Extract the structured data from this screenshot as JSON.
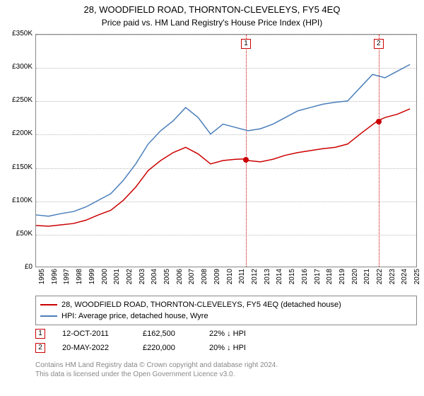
{
  "title": "28, WOODFIELD ROAD, THORNTON-CLEVELEYS, FY5 4EQ",
  "subtitle": "Price paid vs. HM Land Registry's House Price Index (HPI)",
  "chart": {
    "type": "line",
    "xrange": [
      1995,
      2025.5
    ],
    "yrange": [
      0,
      350000
    ],
    "ytick_step": 50000,
    "ytick_labels": [
      "£0",
      "£50K",
      "£100K",
      "£150K",
      "£200K",
      "£250K",
      "£300K",
      "£350K"
    ],
    "xtick_step": 1,
    "xticks": [
      1995,
      1996,
      1997,
      1998,
      1999,
      2000,
      2001,
      2002,
      2003,
      2004,
      2005,
      2006,
      2007,
      2008,
      2009,
      2010,
      2011,
      2012,
      2013,
      2014,
      2015,
      2016,
      2017,
      2018,
      2019,
      2020,
      2021,
      2022,
      2023,
      2024,
      2025
    ],
    "grid_color": "#bbbbbb",
    "border_color": "#888888",
    "background_color": "#ffffff",
    "series": [
      {
        "name": "property",
        "label": "28, WOODFIELD ROAD, THORNTON-CLEVELEYS, FY5 4EQ (detached house)",
        "color": "#cc0000",
        "line_width": 1.5,
        "data": [
          [
            1995,
            62000
          ],
          [
            1996,
            61000
          ],
          [
            1997,
            63000
          ],
          [
            1998,
            65000
          ],
          [
            1999,
            70000
          ],
          [
            2000,
            78000
          ],
          [
            2001,
            85000
          ],
          [
            2002,
            100000
          ],
          [
            2003,
            120000
          ],
          [
            2004,
            145000
          ],
          [
            2005,
            160000
          ],
          [
            2006,
            172000
          ],
          [
            2007,
            180000
          ],
          [
            2008,
            170000
          ],
          [
            2009,
            155000
          ],
          [
            2010,
            160000
          ],
          [
            2011,
            162000
          ],
          [
            2011.8,
            162500
          ],
          [
            2012,
            160000
          ],
          [
            2013,
            158000
          ],
          [
            2014,
            162000
          ],
          [
            2015,
            168000
          ],
          [
            2016,
            172000
          ],
          [
            2017,
            175000
          ],
          [
            2018,
            178000
          ],
          [
            2019,
            180000
          ],
          [
            2020,
            185000
          ],
          [
            2021,
            200000
          ],
          [
            2022.4,
            220000
          ],
          [
            2023,
            225000
          ],
          [
            2024,
            230000
          ],
          [
            2025,
            238000
          ]
        ]
      },
      {
        "name": "hpi",
        "label": "HPI: Average price, detached house, Wyre",
        "color": "#4a7ebb",
        "line_width": 1.5,
        "data": [
          [
            1995,
            78000
          ],
          [
            1996,
            76000
          ],
          [
            1997,
            80000
          ],
          [
            1998,
            83000
          ],
          [
            1999,
            90000
          ],
          [
            2000,
            100000
          ],
          [
            2001,
            110000
          ],
          [
            2002,
            130000
          ],
          [
            2003,
            155000
          ],
          [
            2004,
            185000
          ],
          [
            2005,
            205000
          ],
          [
            2006,
            220000
          ],
          [
            2007,
            240000
          ],
          [
            2008,
            225000
          ],
          [
            2009,
            200000
          ],
          [
            2010,
            215000
          ],
          [
            2011,
            210000
          ],
          [
            2012,
            205000
          ],
          [
            2013,
            208000
          ],
          [
            2014,
            215000
          ],
          [
            2015,
            225000
          ],
          [
            2016,
            235000
          ],
          [
            2017,
            240000
          ],
          [
            2018,
            245000
          ],
          [
            2019,
            248000
          ],
          [
            2020,
            250000
          ],
          [
            2021,
            270000
          ],
          [
            2022,
            290000
          ],
          [
            2023,
            285000
          ],
          [
            2024,
            295000
          ],
          [
            2025,
            305000
          ]
        ]
      }
    ],
    "vlines": [
      {
        "x": 2011.78,
        "color": "#cc0000",
        "label": "1"
      },
      {
        "x": 2022.38,
        "color": "#cc0000",
        "label": "2"
      }
    ],
    "price_points": [
      {
        "x": 2011.78,
        "y": 162500,
        "color": "#cc0000"
      },
      {
        "x": 2022.38,
        "y": 220000,
        "color": "#cc0000"
      }
    ]
  },
  "transactions": [
    {
      "n": "1",
      "date": "12-OCT-2011",
      "price": "£162,500",
      "diff": "22% ↓ HPI",
      "color": "#cc0000"
    },
    {
      "n": "2",
      "date": "20-MAY-2022",
      "price": "£220,000",
      "diff": "20% ↓ HPI",
      "color": "#cc0000"
    }
  ],
  "footer": {
    "line1": "Contains HM Land Registry data © Crown copyright and database right 2024.",
    "line2": "This data is licensed under the Open Government Licence v3.0."
  }
}
